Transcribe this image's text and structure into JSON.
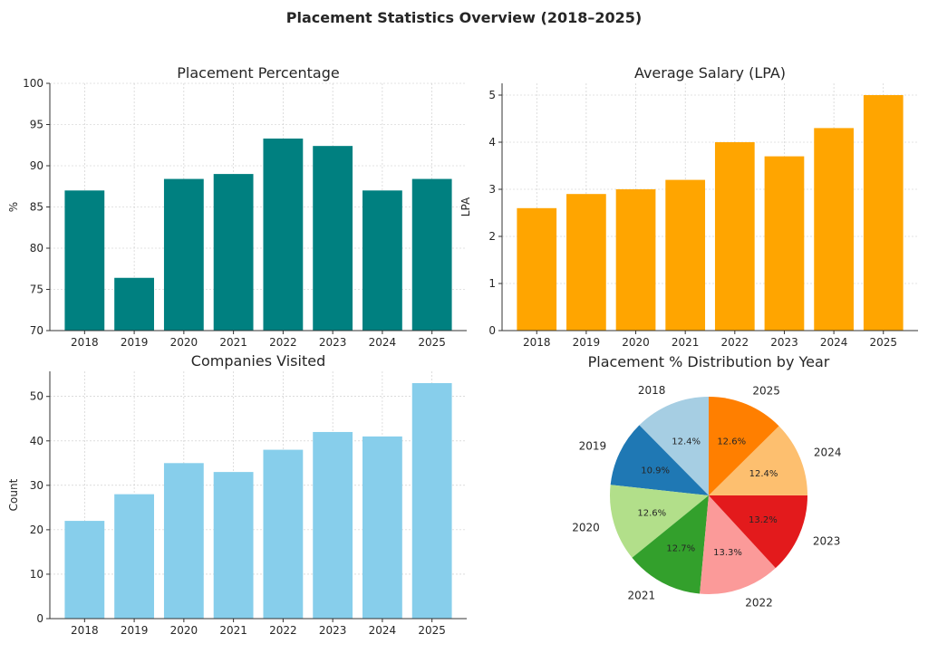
{
  "figure": {
    "title": "Placement Statistics Overview (2018–2025)"
  },
  "colors": {
    "percentage_bar": "#008080",
    "salary_bar": "#FFA500",
    "companies_bar": "#87CEEB",
    "pie": [
      "#A6CEE3",
      "#1F78B4",
      "#B2DF8A",
      "#33A02C",
      "#FB9A99",
      "#E31A1C",
      "#FDBF6F",
      "#FF7F00"
    ]
  },
  "chart_data": [
    {
      "type": "bar",
      "title": "Placement Percentage",
      "xlabel": "",
      "ylabel": "%",
      "categories": [
        "2018",
        "2019",
        "2020",
        "2021",
        "2022",
        "2023",
        "2024",
        "2025"
      ],
      "values": [
        87.0,
        76.4,
        88.4,
        89.0,
        93.3,
        92.4,
        87.0,
        88.4
      ],
      "ylim": [
        70,
        100
      ],
      "yticks": [
        "70",
        "75",
        "80",
        "85",
        "90",
        "95",
        "100"
      ],
      "grid": true
    },
    {
      "type": "bar",
      "title": "Average Salary (LPA)",
      "xlabel": "",
      "ylabel": "LPA",
      "categories": [
        "2018",
        "2019",
        "2020",
        "2021",
        "2022",
        "2023",
        "2024",
        "2025"
      ],
      "values": [
        2.6,
        2.9,
        3.0,
        3.2,
        4.0,
        3.7,
        4.3,
        5.0
      ],
      "ylim": [
        0,
        5.25
      ],
      "yticks": [
        "0",
        "1",
        "2",
        "3",
        "4",
        "5"
      ],
      "grid": true
    },
    {
      "type": "bar",
      "title": "Companies Visited",
      "xlabel": "",
      "ylabel": "Count",
      "categories": [
        "2018",
        "2019",
        "2020",
        "2021",
        "2022",
        "2023",
        "2024",
        "2025"
      ],
      "values": [
        22,
        28,
        35,
        33,
        38,
        42,
        41,
        53
      ],
      "ylim": [
        0,
        55.65
      ],
      "yticks": [
        "0",
        "10",
        "20",
        "30",
        "40",
        "50"
      ],
      "grid": true
    },
    {
      "type": "pie",
      "title": "Placement % Distribution by Year",
      "labels": [
        "2018",
        "2019",
        "2020",
        "2021",
        "2022",
        "2023",
        "2024",
        "2025"
      ],
      "values": [
        87.0,
        76.4,
        88.4,
        89.0,
        93.3,
        92.4,
        87.0,
        88.4
      ],
      "pct_labels": [
        "12.4%",
        "10.9%",
        "12.6%",
        "12.7%",
        "13.3%",
        "13.2%",
        "12.4%",
        "12.6%"
      ],
      "start_angle": 90,
      "direction": "counterclockwise"
    }
  ]
}
